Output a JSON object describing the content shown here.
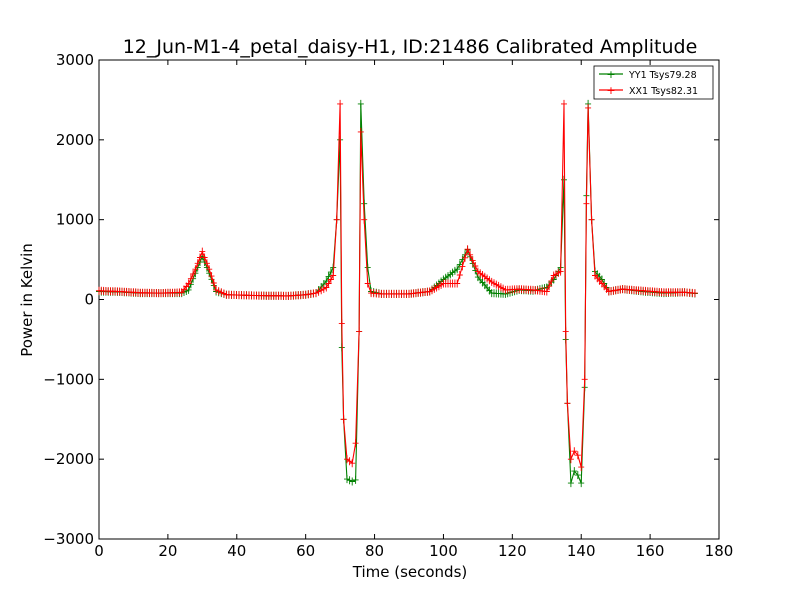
{
  "chart_data": {
    "type": "line",
    "title": "12_Jun-M1-4_petal_daisy-H1, ID:21486 Calibrated Amplitude",
    "xlabel": "Time (seconds)",
    "ylabel": "Power in Kelvin",
    "xlim": [
      0,
      180
    ],
    "ylim": [
      -3000,
      3000
    ],
    "x_ticks": [
      0,
      20,
      40,
      60,
      80,
      100,
      120,
      140,
      160,
      180
    ],
    "y_ticks": [
      -3000,
      -2000,
      -1000,
      0,
      1000,
      2000,
      3000
    ],
    "x_tick_labels": [
      "0",
      "20",
      "40",
      "60",
      "80",
      "100",
      "120",
      "140",
      "160",
      "180"
    ],
    "y_tick_labels": [
      "−3000",
      "−2000",
      "−1000",
      "0",
      "1000",
      "2000",
      "3000"
    ],
    "grid": false,
    "legend_position": "top-right",
    "marker": "+",
    "series": [
      {
        "name": "YY1 Tsys79.28",
        "color": "#008000",
        "points": [
          [
            0,
            100
          ],
          [
            6,
            95
          ],
          [
            12,
            80
          ],
          [
            18,
            80
          ],
          [
            24,
            80
          ],
          [
            26,
            120
          ],
          [
            28,
            330
          ],
          [
            30,
            540
          ],
          [
            32,
            330
          ],
          [
            34,
            100
          ],
          [
            37,
            60
          ],
          [
            45,
            50
          ],
          [
            55,
            45
          ],
          [
            60,
            60
          ],
          [
            63,
            80
          ],
          [
            66,
            230
          ],
          [
            68,
            400
          ],
          [
            69,
            1000
          ],
          [
            70,
            2000
          ],
          [
            70.5,
            -600
          ],
          [
            71,
            -1500
          ],
          [
            72,
            -2250
          ],
          [
            73.5,
            -2280
          ],
          [
            74.5,
            -2260
          ],
          [
            75.5,
            -400
          ],
          [
            76,
            2450
          ],
          [
            77,
            1200
          ],
          [
            78,
            400
          ],
          [
            79,
            100
          ],
          [
            82,
            70
          ],
          [
            90,
            70
          ],
          [
            96,
            100
          ],
          [
            100,
            250
          ],
          [
            104,
            380
          ],
          [
            107,
            620
          ],
          [
            110,
            280
          ],
          [
            114,
            80
          ],
          [
            118,
            70
          ],
          [
            122,
            120
          ],
          [
            126,
            110
          ],
          [
            130,
            150
          ],
          [
            132,
            250
          ],
          [
            134,
            400
          ],
          [
            135,
            1500
          ],
          [
            135.5,
            -500
          ],
          [
            136,
            -1300
          ],
          [
            137,
            -2300
          ],
          [
            138,
            -2150
          ],
          [
            139,
            -2200
          ],
          [
            140,
            -2300
          ],
          [
            141,
            -1100
          ],
          [
            141.5,
            1300
          ],
          [
            142,
            2450
          ],
          [
            143,
            1000
          ],
          [
            144,
            350
          ],
          [
            146,
            250
          ],
          [
            148,
            100
          ],
          [
            152,
            130
          ],
          [
            158,
            100
          ],
          [
            164,
            80
          ],
          [
            170,
            90
          ],
          [
            173,
            75
          ]
        ]
      },
      {
        "name": "XX1 Tsys82.31",
        "color": "#ff0000",
        "points": [
          [
            0,
            110
          ],
          [
            6,
            100
          ],
          [
            12,
            85
          ],
          [
            18,
            80
          ],
          [
            24,
            90
          ],
          [
            26,
            200
          ],
          [
            28,
            380
          ],
          [
            30,
            600
          ],
          [
            32,
            380
          ],
          [
            34,
            120
          ],
          [
            37,
            60
          ],
          [
            45,
            50
          ],
          [
            55,
            45
          ],
          [
            60,
            60
          ],
          [
            63,
            80
          ],
          [
            66,
            150
          ],
          [
            68,
            300
          ],
          [
            69,
            1000
          ],
          [
            70,
            2450
          ],
          [
            70.5,
            -300
          ],
          [
            71,
            -1500
          ],
          [
            72,
            -2000
          ],
          [
            73.5,
            -2050
          ],
          [
            74.5,
            -1800
          ],
          [
            75.5,
            -400
          ],
          [
            76,
            2100
          ],
          [
            77,
            1000
          ],
          [
            78,
            200
          ],
          [
            79,
            80
          ],
          [
            82,
            70
          ],
          [
            90,
            70
          ],
          [
            96,
            100
          ],
          [
            100,
            200
          ],
          [
            104,
            200
          ],
          [
            107,
            630
          ],
          [
            110,
            350
          ],
          [
            114,
            220
          ],
          [
            118,
            120
          ],
          [
            122,
            130
          ],
          [
            126,
            120
          ],
          [
            130,
            100
          ],
          [
            132,
            300
          ],
          [
            134,
            350
          ],
          [
            135,
            2450
          ],
          [
            135.5,
            -400
          ],
          [
            136,
            -1300
          ],
          [
            137,
            -2000
          ],
          [
            138,
            -1900
          ],
          [
            139,
            -1950
          ],
          [
            140,
            -2100
          ],
          [
            141,
            -1000
          ],
          [
            141.5,
            1200
          ],
          [
            142,
            2400
          ],
          [
            143,
            1000
          ],
          [
            144,
            300
          ],
          [
            146,
            200
          ],
          [
            148,
            100
          ],
          [
            152,
            130
          ],
          [
            158,
            110
          ],
          [
            164,
            90
          ],
          [
            170,
            90
          ],
          [
            173,
            80
          ]
        ]
      }
    ]
  }
}
